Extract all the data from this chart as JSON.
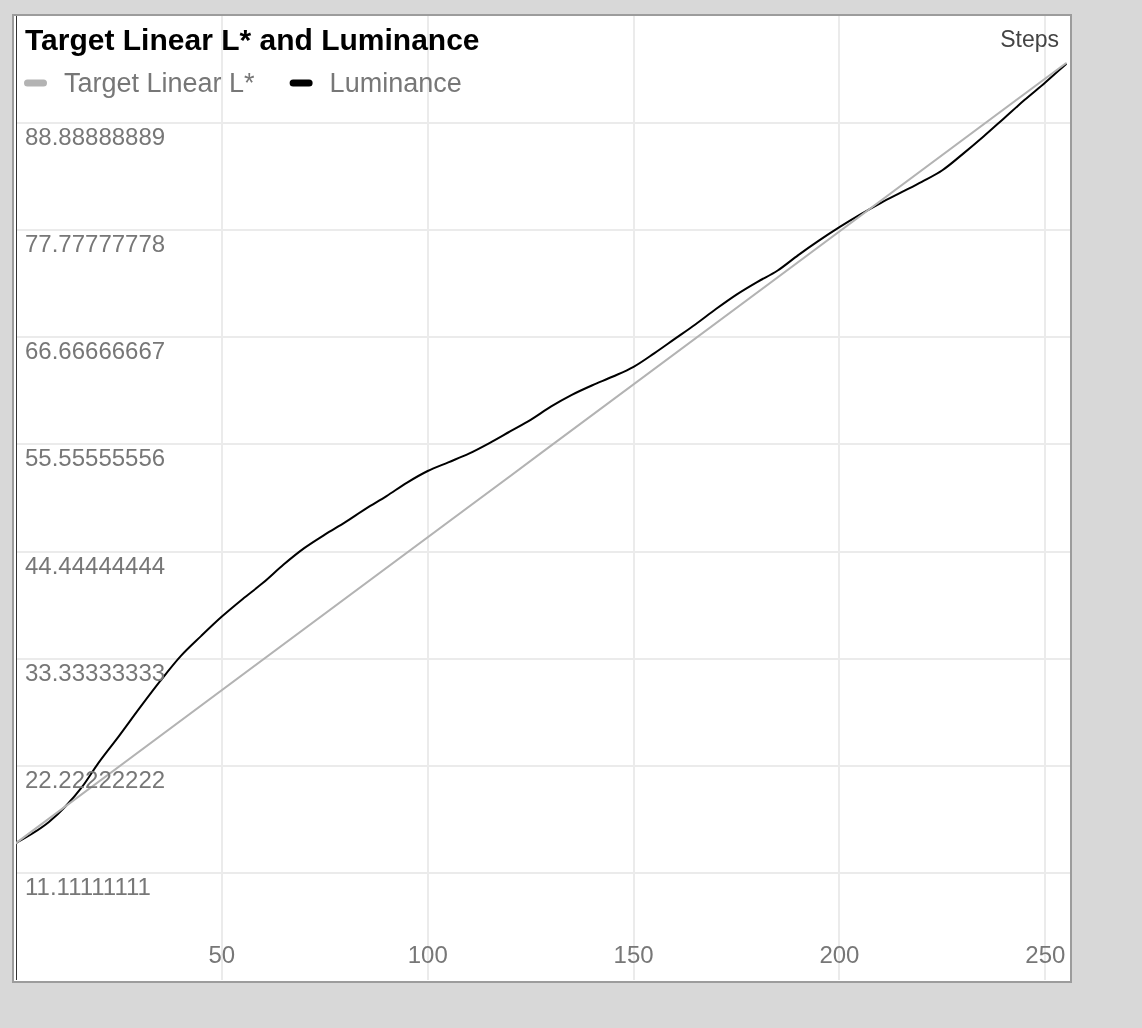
{
  "chart_data": {
    "type": "line",
    "title": "Target Linear L* and Luminance",
    "xlabel": "Steps",
    "xlim": [
      0,
      256
    ],
    "xticks": [
      50,
      100,
      150,
      200,
      250
    ],
    "ylim": [
      0,
      100
    ],
    "yticks": [
      11.11111111,
      22.22222222,
      33.33333333,
      44.44444444,
      55.55555556,
      66.66666667,
      77.77777778,
      88.88888889
    ],
    "grid": true,
    "legend": "top left",
    "marker": "none",
    "series": [
      {
        "name": "Target Linear L*",
        "color": "#b3b3b3",
        "x": [
          0,
          255
        ],
        "values": [
          14.2,
          95.1
        ]
      },
      {
        "name": "Luminance",
        "color": "#000000",
        "x": [
          0,
          4,
          8,
          12,
          16,
          20,
          25,
          30,
          35,
          40,
          45,
          50,
          55,
          60,
          65,
          70,
          75,
          80,
          85,
          90,
          95,
          100,
          105,
          110,
          115,
          120,
          125,
          130,
          135,
          140,
          145,
          150,
          155,
          160,
          165,
          170,
          175,
          180,
          185,
          190,
          195,
          200,
          205,
          210,
          215,
          220,
          225,
          230,
          235,
          240,
          245,
          250,
          255
        ],
        "values": [
          14.2,
          15.2,
          16.4,
          18.0,
          20.0,
          22.5,
          25.3,
          28.2,
          31.0,
          33.6,
          35.7,
          37.7,
          39.5,
          41.2,
          43.1,
          44.8,
          46.2,
          47.5,
          48.9,
          50.2,
          51.6,
          52.8,
          53.7,
          54.6,
          55.7,
          56.9,
          58.1,
          59.5,
          60.7,
          61.7,
          62.6,
          63.6,
          65.0,
          66.5,
          68.0,
          69.6,
          71.1,
          72.4,
          73.6,
          75.2,
          76.7,
          78.1,
          79.4,
          80.6,
          81.7,
          82.8,
          84.0,
          85.7,
          87.5,
          89.4,
          91.3,
          93.1,
          95.0
        ]
      }
    ]
  }
}
